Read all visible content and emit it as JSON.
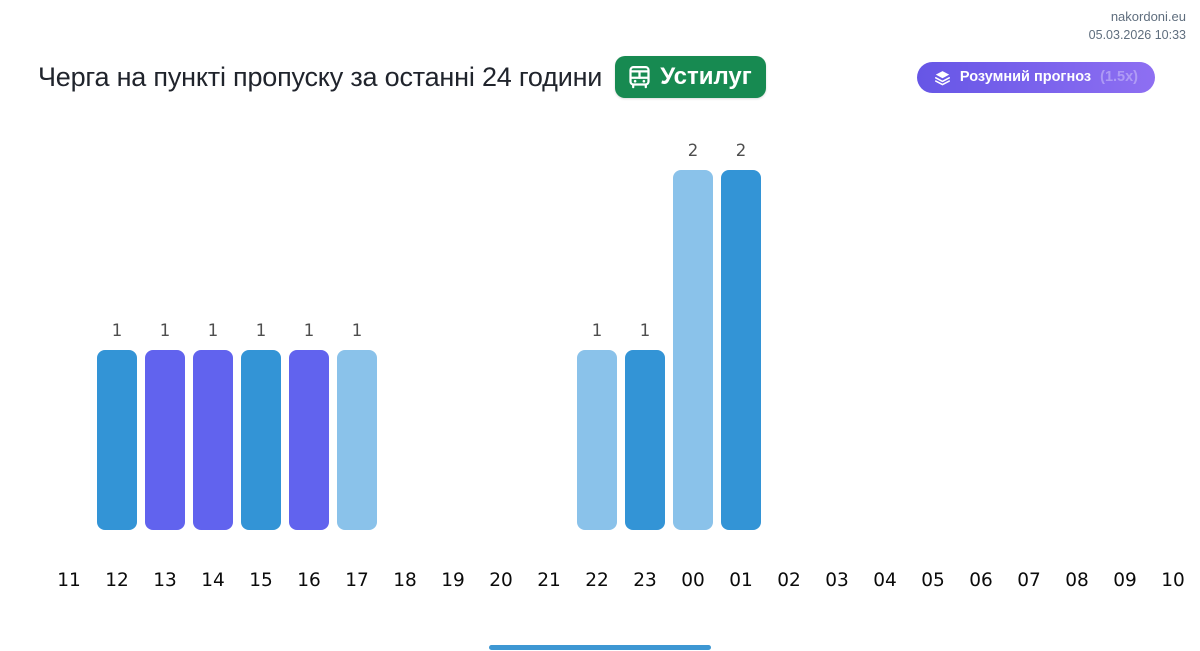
{
  "site": {
    "domain_label": "nakordoni.eu",
    "timestamp": "05.03.2026 10:33"
  },
  "header": {
    "title": "Черга на пункті пропуску за останні 24 години",
    "checkpoint": {
      "label": "Устилуг",
      "icon": "bus-icon",
      "bg_color": "#178a51"
    },
    "forecast": {
      "label": "Розумний прогноз",
      "multiplier": "(1.5x)",
      "icon": "layers-icon",
      "gradient": [
        "#6656e6",
        "#8e6ff2"
      ]
    }
  },
  "palette": {
    "bar_blue": "#3394d6",
    "bar_purple": "#6163ee",
    "bar_light_blue": "#8ac2ea",
    "value_label_color": "#4e4e4e",
    "axis_label_color": "#0b0b0b"
  },
  "chart_data": {
    "type": "bar",
    "title": "Черга на пункті пропуску за останні 24 години",
    "xlabel": "",
    "ylabel": "",
    "ylim": [
      0,
      2
    ],
    "grid": false,
    "legend": null,
    "value_labels_shown": true,
    "categories": [
      "11",
      "12",
      "13",
      "14",
      "15",
      "16",
      "17",
      "18",
      "19",
      "20",
      "21",
      "22",
      "23",
      "00",
      "01",
      "02",
      "03",
      "04",
      "05",
      "06",
      "07",
      "08",
      "09",
      "10"
    ],
    "values": [
      0,
      1,
      1,
      1,
      1,
      1,
      1,
      0,
      0,
      0,
      0,
      1,
      1,
      2,
      2,
      0,
      0,
      0,
      0,
      0,
      0,
      0,
      0,
      0
    ],
    "bar_colors": [
      null,
      "#3394d6",
      "#6163ee",
      "#6163ee",
      "#3394d6",
      "#6163ee",
      "#8ac2ea",
      null,
      null,
      null,
      null,
      "#8ac2ea",
      "#3394d6",
      "#8ac2ea",
      "#3394d6",
      null,
      null,
      null,
      null,
      null,
      null,
      null,
      null,
      null
    ]
  }
}
